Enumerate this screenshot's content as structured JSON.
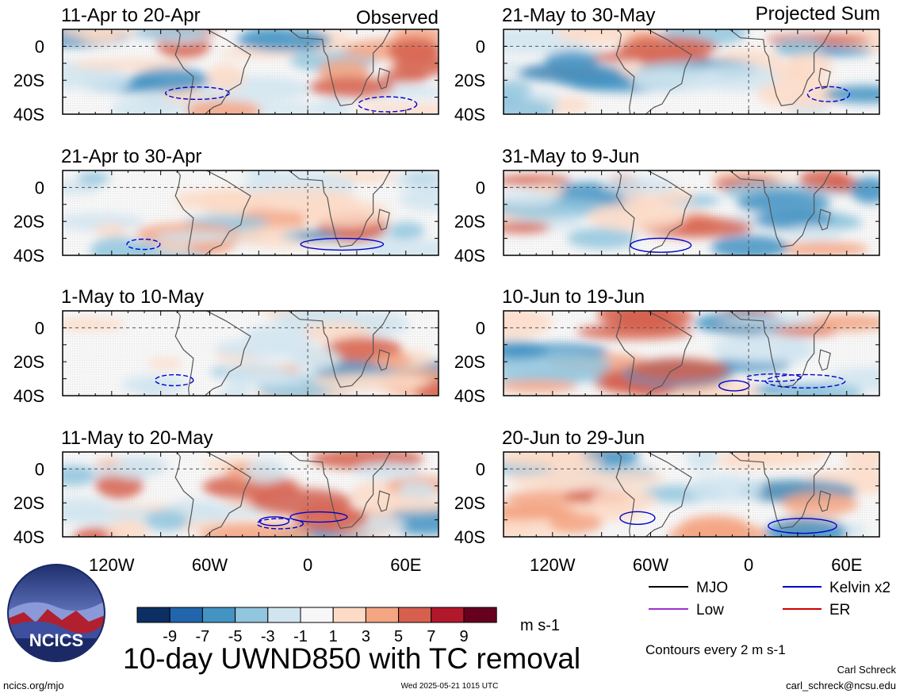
{
  "header": {
    "left_label": "Observed",
    "right_label": "Projected Sum"
  },
  "panels": {
    "left": [
      {
        "title": "11-Apr to 20-Apr"
      },
      {
        "title": "21-Apr to 30-Apr"
      },
      {
        "title": "1-May to 10-May"
      },
      {
        "title": "11-May to 20-May"
      }
    ],
    "right": [
      {
        "title": "21-May to 30-May"
      },
      {
        "title": "31-May to 9-Jun"
      },
      {
        "title": "10-Jun to 19-Jun"
      },
      {
        "title": "20-Jun to 29-Jun"
      }
    ]
  },
  "axes": {
    "y_ticks": [
      "0",
      "20S",
      "40S"
    ],
    "x_ticks": [
      "120W",
      "60W",
      "0",
      "60E"
    ]
  },
  "colorbar": {
    "colors": [
      "#0b2f63",
      "#2166ac",
      "#4393c3",
      "#92c5de",
      "#d1e5f0",
      "#f7f7f7",
      "#fddbc7",
      "#f4a582",
      "#d6604d",
      "#b2182b",
      "#67001f"
    ],
    "labels": [
      "-9",
      "-7",
      "-5",
      "-3",
      "-1",
      "1",
      "3",
      "5",
      "7",
      "9"
    ],
    "units": "m s-1"
  },
  "title": "10-day UWND850 with TC removal",
  "legend": {
    "items": [
      {
        "label": "MJO",
        "color": "#000000"
      },
      {
        "label": "Kelvin x2",
        "color": "#0000cc"
      },
      {
        "label": "Low",
        "color": "#9933cc"
      },
      {
        "label": "ER",
        "color": "#cc0000"
      }
    ],
    "contour_note": "Contours every 2 m s-1"
  },
  "footer": {
    "left": "ncics.org/mjo",
    "center": "Wed 2025-05-21 1015 UTC",
    "author": "Carl Schreck",
    "email": "carl_schreck@ncsu.edu"
  },
  "logo": {
    "text": "NCICS"
  },
  "chart_data": {
    "type": "heatmap",
    "variable": "10-day mean 850-hPa zonal wind anomaly with TC removal",
    "units": "m s-1",
    "x_axis": {
      "ticks": [
        "120W",
        "60W",
        "0",
        "60E"
      ],
      "range": [
        -150,
        80
      ]
    },
    "y_axis": {
      "ticks": [
        "0",
        "20S",
        "40S"
      ],
      "range": [
        -40,
        10
      ]
    },
    "color_levels": [
      -9,
      -7,
      -5,
      -3,
      -1,
      1,
      3,
      5,
      7,
      9
    ],
    "panels": [
      {
        "title": "11-Apr to 20-Apr",
        "group": "Observed"
      },
      {
        "title": "21-Apr to 30-Apr",
        "group": "Observed"
      },
      {
        "title": "1-May to 10-May",
        "group": "Observed"
      },
      {
        "title": "11-May to 20-May",
        "group": "Observed"
      },
      {
        "title": "21-May to 30-May",
        "group": "Projected Sum"
      },
      {
        "title": "31-May to 9-Jun",
        "group": "Projected Sum"
      },
      {
        "title": "10-Jun to 19-Jun",
        "group": "Projected Sum"
      },
      {
        "title": "20-Jun to 29-Jun",
        "group": "Projected Sum"
      }
    ]
  }
}
